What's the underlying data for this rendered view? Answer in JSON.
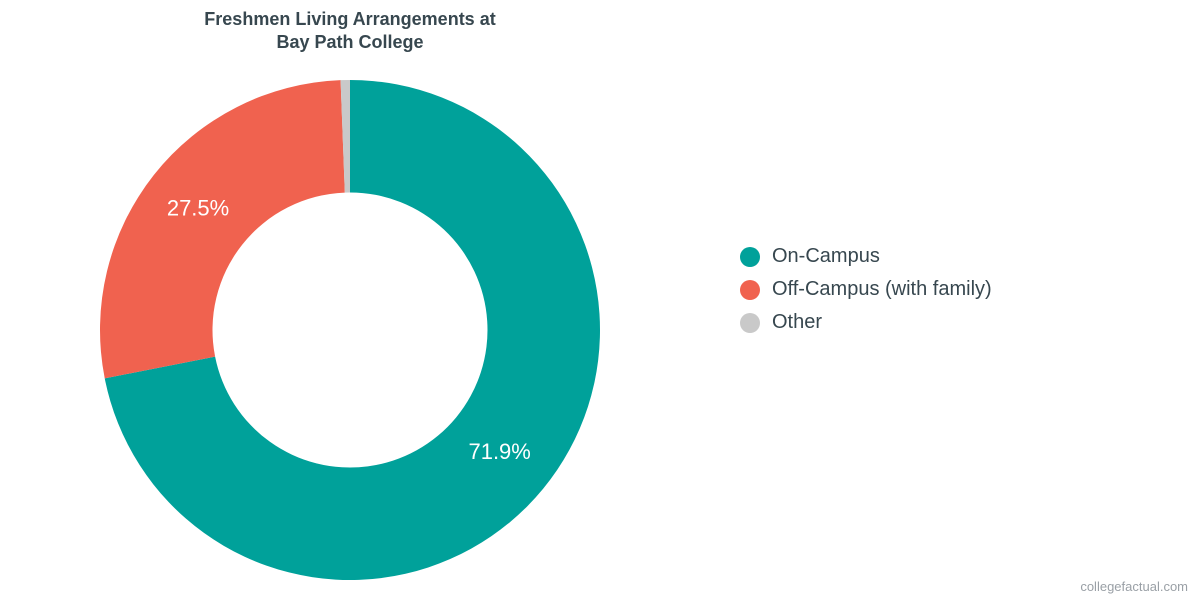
{
  "chart": {
    "type": "donut",
    "title_line1": "Freshmen Living Arrangements at",
    "title_line2": "Bay Path College",
    "title_fontsize": 18,
    "title_color": "#37474f",
    "background_color": "#ffffff",
    "inner_radius_ratio": 0.55,
    "start_angle_deg": -90,
    "series": [
      {
        "label": "On-Campus",
        "value": 71.9,
        "color": "#00a19a",
        "show_pct": true,
        "pct_text": "71.9%"
      },
      {
        "label": "Off-Campus (with family)",
        "value": 27.5,
        "color": "#f0624f",
        "show_pct": true,
        "pct_text": "27.5%"
      },
      {
        "label": "Other",
        "value": 0.6,
        "color": "#c9c9c9",
        "show_pct": false,
        "pct_text": ""
      }
    ],
    "label_fontsize": 22,
    "label_color": "#ffffff",
    "legend": {
      "fontsize": 20,
      "text_color": "#37474f",
      "swatch_radius": 10
    },
    "attribution": "collegefactual.com",
    "attribution_color": "#9aa0a6",
    "attribution_fontsize": 13
  }
}
